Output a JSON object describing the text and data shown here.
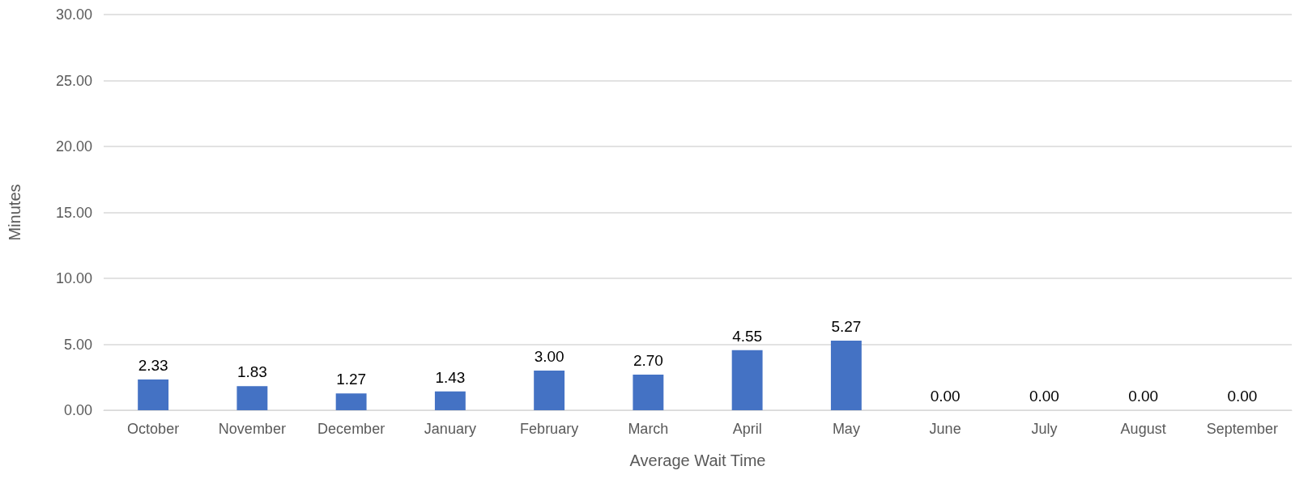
{
  "chart_data": {
    "type": "bar",
    "xlabel": "Average Wait Time",
    "ylabel": "Minutes",
    "categories": [
      "October",
      "November",
      "December",
      "January",
      "February",
      "March",
      "April",
      "May",
      "June",
      "July",
      "August",
      "September"
    ],
    "values": [
      2.33,
      1.83,
      1.27,
      1.43,
      3.0,
      2.7,
      4.55,
      5.27,
      0,
      0,
      0,
      0
    ],
    "value_labels": [
      "2.33",
      "1.83",
      "1.27",
      "1.43",
      "3.00",
      "2.70",
      "4.55",
      "5.27",
      "0.00",
      "0.00",
      "0.00",
      "0.00"
    ],
    "color": "#4472c4",
    "ylim": [
      0,
      30
    ],
    "yticks": [
      {
        "value": 0,
        "label": "0.00"
      },
      {
        "value": 5,
        "label": "5.00"
      },
      {
        "value": 10,
        "label": "10.00"
      },
      {
        "value": 15,
        "label": "15.00"
      },
      {
        "value": 20,
        "label": "20.00"
      },
      {
        "value": 25,
        "label": "25.00"
      },
      {
        "value": 30,
        "label": "30.00"
      }
    ],
    "grid": "y"
  }
}
